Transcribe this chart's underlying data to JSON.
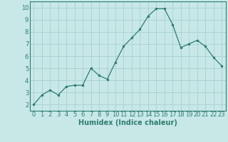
{
  "x": [
    0,
    1,
    2,
    3,
    4,
    5,
    6,
    7,
    8,
    9,
    10,
    11,
    12,
    13,
    14,
    15,
    16,
    17,
    18,
    19,
    20,
    21,
    22,
    23
  ],
  "y": [
    2.0,
    2.8,
    3.2,
    2.8,
    3.5,
    3.6,
    3.6,
    5.0,
    4.4,
    4.1,
    5.5,
    6.8,
    7.5,
    8.2,
    9.3,
    9.9,
    9.9,
    8.6,
    6.7,
    7.0,
    7.3,
    6.8,
    5.9,
    5.2
  ],
  "line_color": "#2e7d6e",
  "marker": ".",
  "marker_size": 3,
  "bg_color": "#c8e8e8",
  "grid_color": "#a8d0d0",
  "xlabel": "Humidex (Indice chaleur)",
  "xlabel_fontsize": 7,
  "tick_fontsize": 6,
  "xlim": [
    -0.5,
    23.5
  ],
  "ylim": [
    1.5,
    10.5
  ],
  "yticks": [
    2,
    3,
    4,
    5,
    6,
    7,
    8,
    9,
    10
  ],
  "xticks": [
    0,
    1,
    2,
    3,
    4,
    5,
    6,
    7,
    8,
    9,
    10,
    11,
    12,
    13,
    14,
    15,
    16,
    17,
    18,
    19,
    20,
    21,
    22,
    23
  ]
}
